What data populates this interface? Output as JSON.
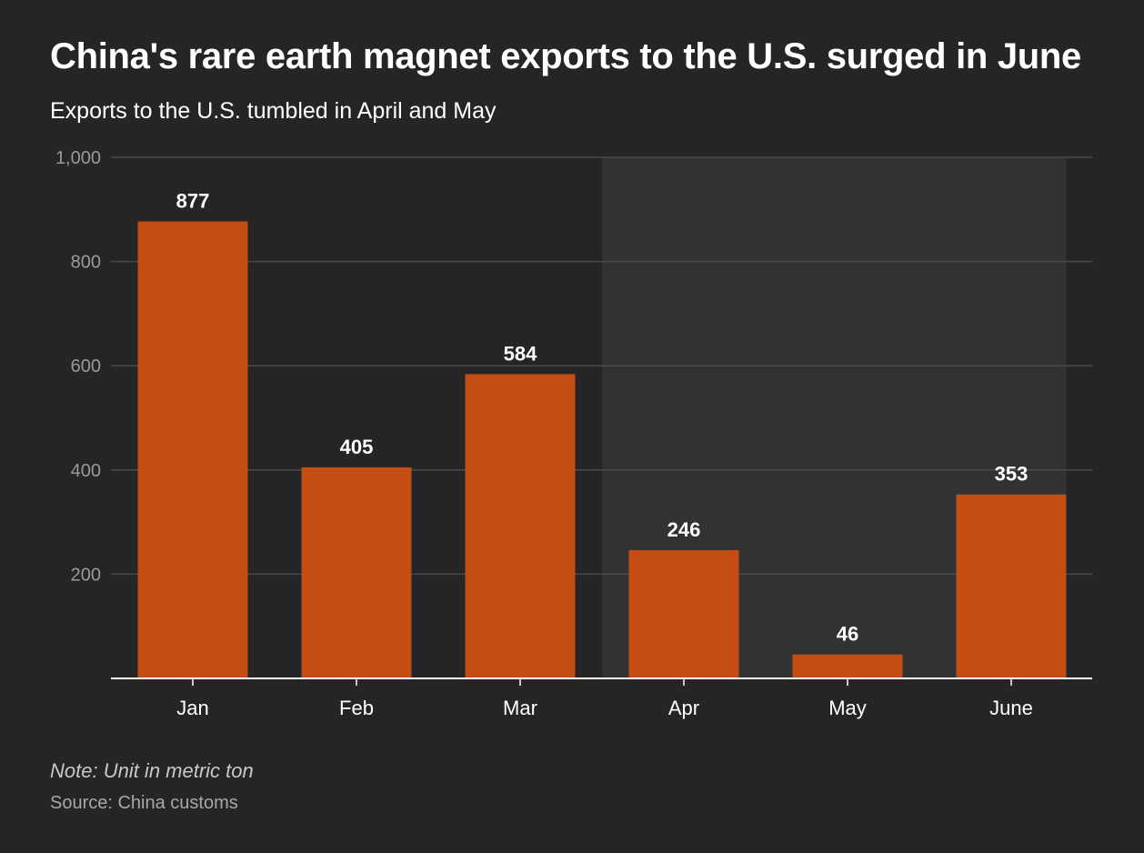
{
  "chart_data": {
    "type": "bar",
    "title": "China's rare earth magnet exports to the U.S. surged in June",
    "subtitle": "Exports to the U.S. tumbled in April and May",
    "categories": [
      "Jan",
      "Feb",
      "Mar",
      "Apr",
      "May",
      "June"
    ],
    "values": [
      877,
      405,
      584,
      246,
      46,
      353
    ],
    "data_labels": [
      "877",
      "405",
      "584",
      "246",
      "46",
      "353"
    ],
    "ylim": [
      0,
      1000
    ],
    "yticks": [
      200,
      400,
      600,
      800,
      1000
    ],
    "ytick_labels": [
      "200",
      "400",
      "600",
      "800",
      "1,000"
    ],
    "highlight_range": [
      "Apr",
      "June"
    ],
    "grid": true,
    "legend": "none",
    "xlabel": "",
    "ylabel": "",
    "note": "Note: Unit in metric ton",
    "source": "Source: China customs"
  },
  "colors": {
    "background": "#252525",
    "bar": "#c44d13",
    "highlight_band": "#323232",
    "gridline": "#4a4a4a",
    "axis": "#ffffff",
    "tick_label": "#9a9a9a",
    "category_label": "#ffffff",
    "value_label": "#ffffff"
  }
}
